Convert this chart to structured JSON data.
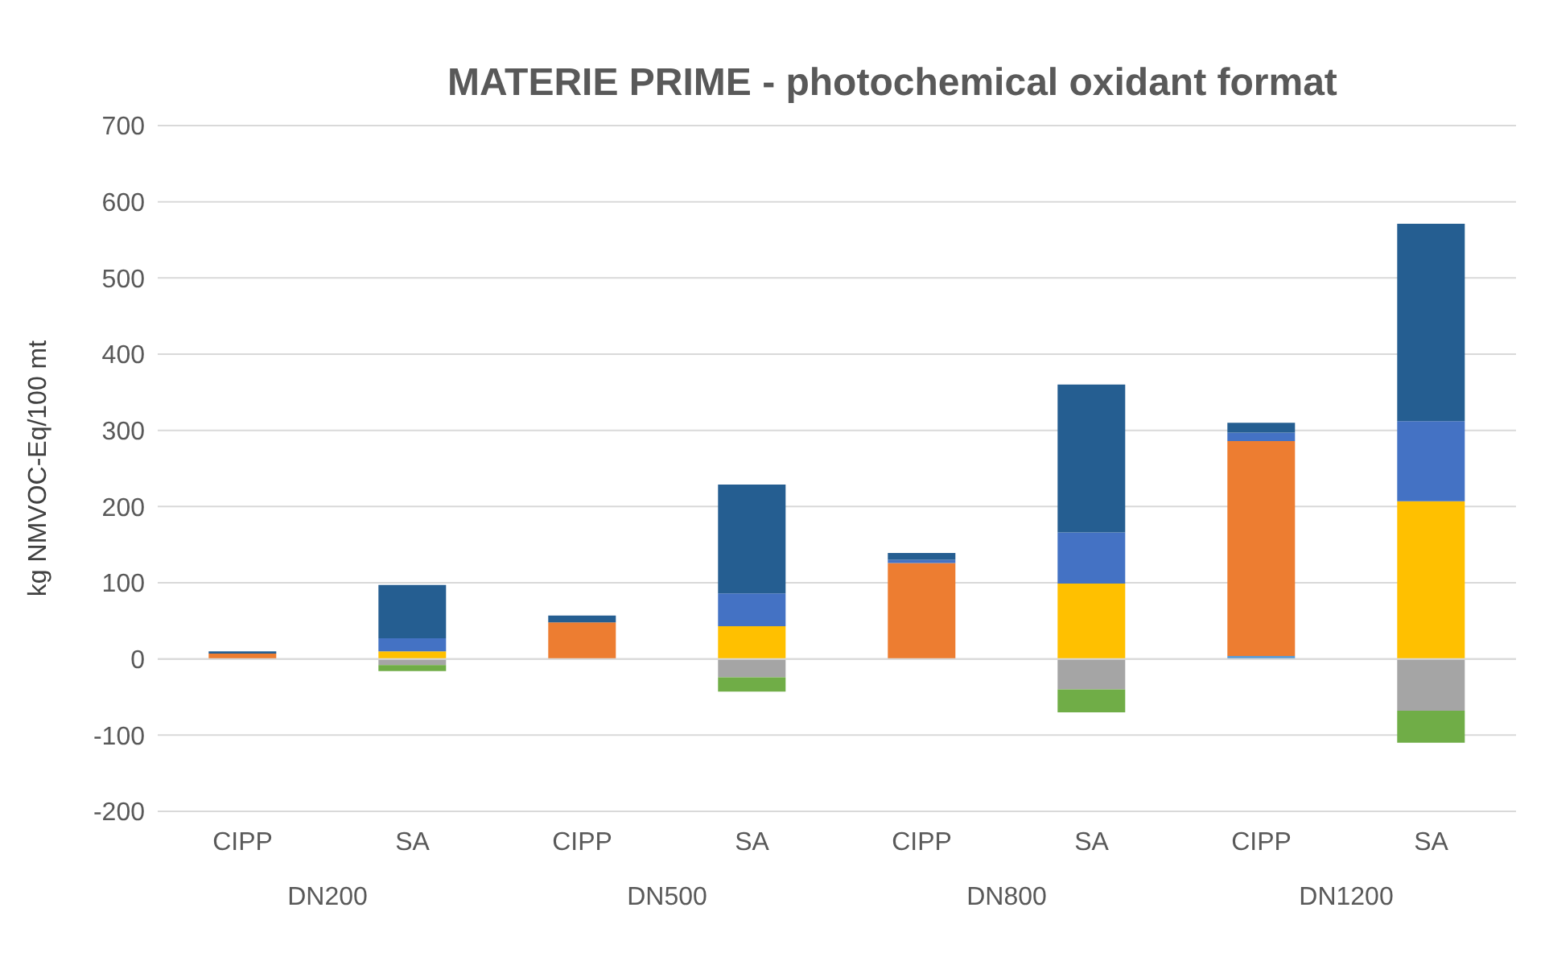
{
  "chart_data": {
    "type": "bar",
    "title": "MATERIE PRIME - photochemical oxidant format",
    "ylabel": "kg NMVOC-Eq/100 mt",
    "categories": [
      "CIPP",
      "SA",
      "CIPP",
      "SA",
      "CIPP",
      "SA",
      "CIPP",
      "SA"
    ],
    "annotations": [
      "DN200",
      "DN500",
      "DN800",
      "DN1200"
    ],
    "stacked": true,
    "series": [
      {
        "color": "#5b9bd5",
        "values": [
          null,
          null,
          null,
          null,
          null,
          null,
          4,
          null
        ]
      },
      {
        "color": "#ed7d31",
        "values": [
          7,
          null,
          48,
          null,
          126,
          null,
          282,
          null
        ]
      },
      {
        "color": "#ffc000",
        "values": [
          null,
          10,
          null,
          43,
          null,
          99,
          null,
          207
        ]
      },
      {
        "color": "#4472c4",
        "values": [
          null,
          17,
          null,
          43,
          4,
          67,
          11,
          105
        ]
      },
      {
        "color": "#255e91",
        "values": [
          3,
          70,
          9,
          143,
          9,
          194,
          13,
          259
        ]
      },
      {
        "color": "#a5a5a5",
        "values": [
          null,
          -8,
          null,
          -24,
          null,
          -40,
          null,
          -68
        ]
      },
      {
        "color": "#70ad47",
        "values": [
          null,
          -8,
          null,
          -19,
          null,
          -30,
          null,
          -42
        ]
      }
    ],
    "ylim": [
      -200,
      700
    ],
    "yticks": [
      -200,
      -100,
      0,
      100,
      200,
      300,
      400,
      500,
      600,
      700
    ],
    "grid": "y"
  }
}
